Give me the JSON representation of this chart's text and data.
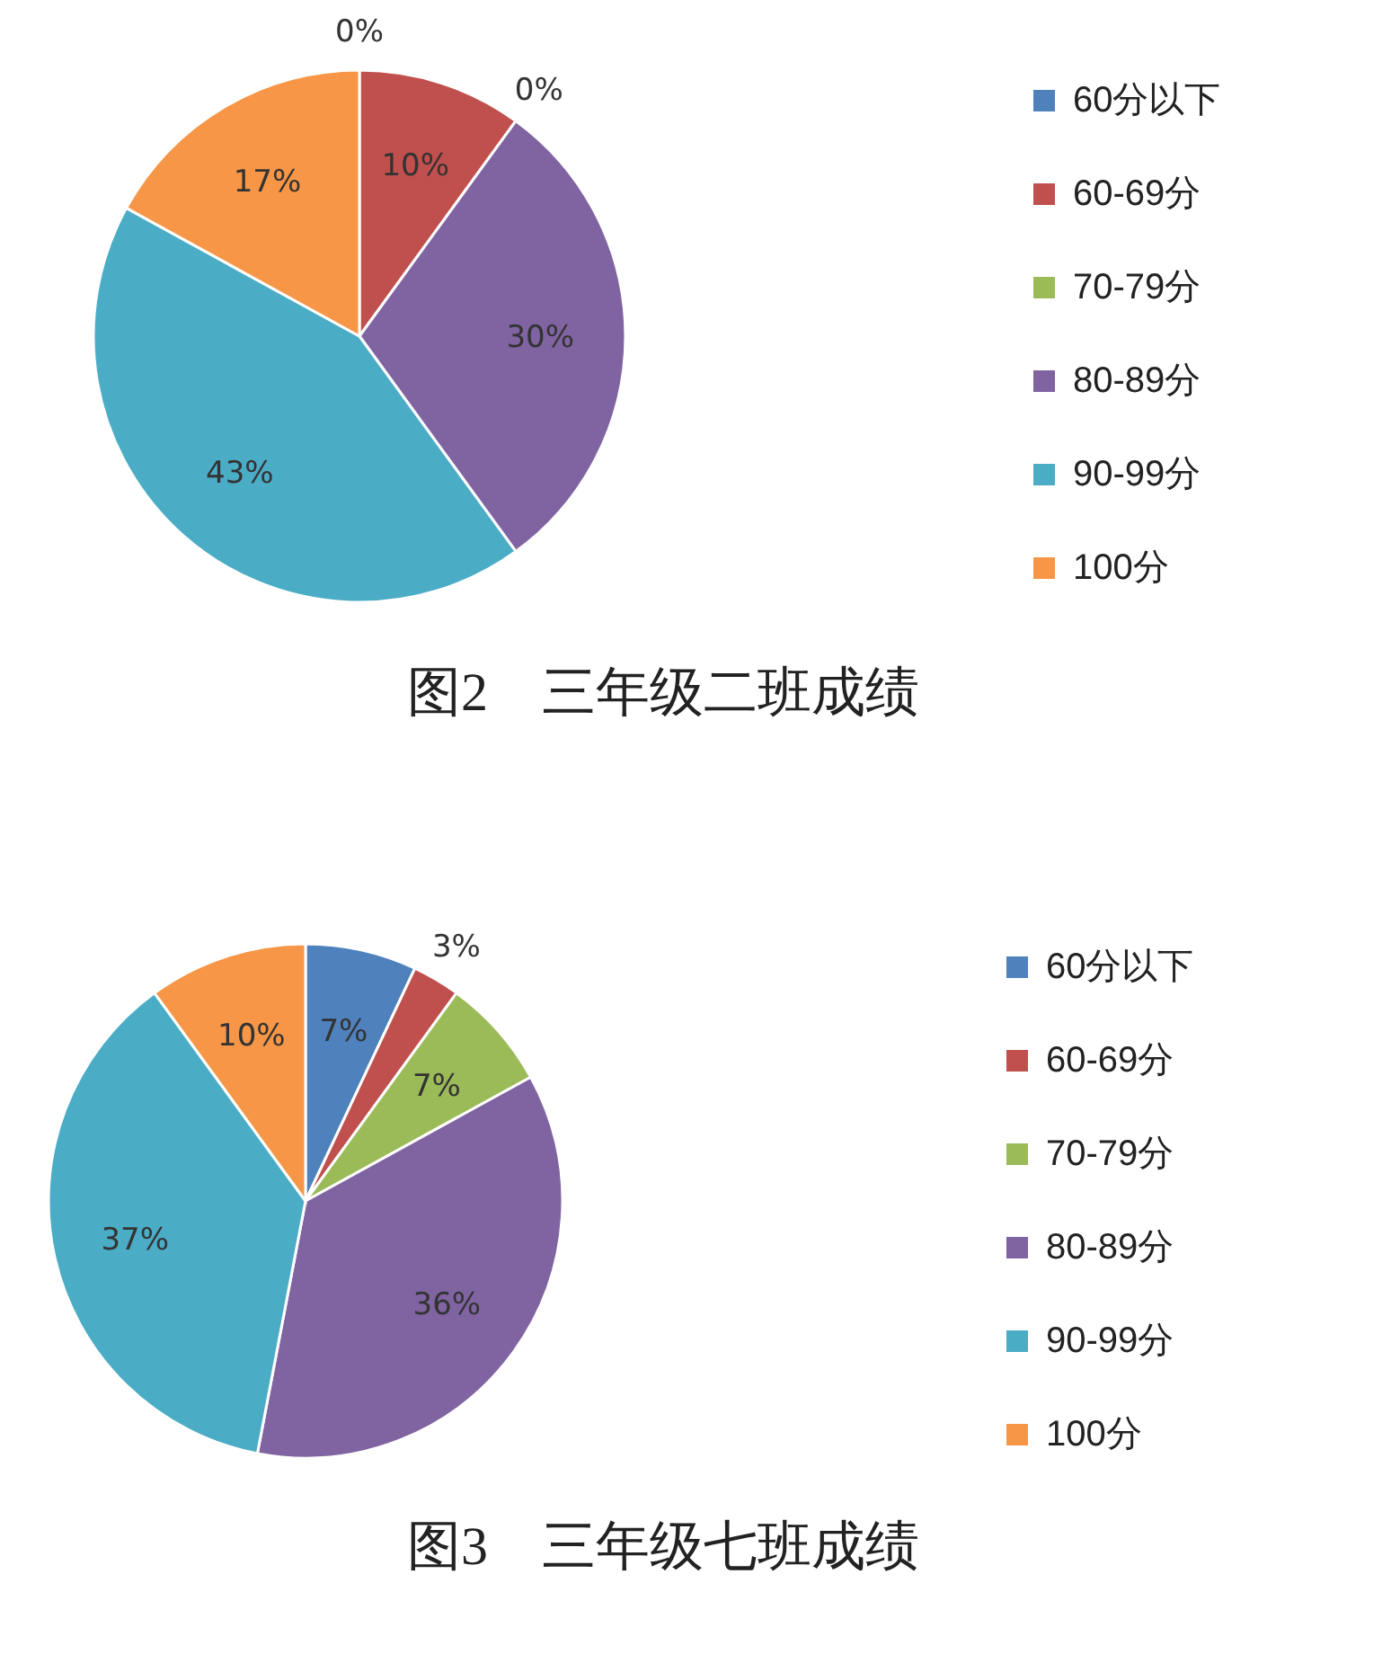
{
  "chart_data": [
    {
      "type": "pie",
      "title": "图2　三年级二班成绩",
      "categories": [
        "60分以下",
        "60-69分",
        "70-79分",
        "80-89分",
        "90-99分",
        "100分"
      ],
      "values": [
        0,
        10,
        0,
        30,
        43,
        17
      ],
      "value_labels": [
        "0%",
        "10%",
        "0%",
        "30%",
        "43%",
        "17%"
      ],
      "colors": [
        "#4f81bd",
        "#c0504d",
        "#9bbb59",
        "#8064a2",
        "#4bacc6",
        "#f79646"
      ],
      "legend": "right"
    },
    {
      "type": "pie",
      "title": "图3　三年级七班成绩",
      "categories": [
        "60分以下",
        "60-69分",
        "70-79分",
        "80-89分",
        "90-99分",
        "100分"
      ],
      "values": [
        7,
        3,
        7,
        36,
        37,
        10
      ],
      "value_labels": [
        "7%",
        "3%",
        "7%",
        "36%",
        "37%",
        "10%"
      ],
      "colors": [
        "#4f81bd",
        "#c0504d",
        "#9bbb59",
        "#8064a2",
        "#4bacc6",
        "#f79646"
      ],
      "legend": "right"
    }
  ]
}
